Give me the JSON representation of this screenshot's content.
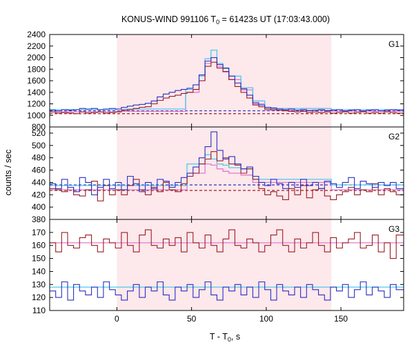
{
  "chart_data": {
    "type": "line",
    "title": "KONUS-WIND 991106 T",
    "title_sub": "0",
    "title_rest": " = 61423s UT (17:03:43.000)",
    "xlabel": "T - T",
    "xlabel_sub": "0",
    "xlabel_rest": ", s",
    "ylabel": "counts / sec",
    "xlim": [
      -45,
      192
    ],
    "x_ticks": [
      "0",
      "50",
      "100",
      "150"
    ],
    "x_tick_values": [
      0,
      50,
      100,
      150
    ],
    "shaded_interval": [
      0,
      143.6
    ],
    "colors": {
      "shade": "#fde8ec",
      "red_series": "#9b1b20",
      "blue_series": "#2a2ebf",
      "pink_fit": "#e17ad0",
      "cyan_fit": "#4fc8e8",
      "axis": "#000000"
    },
    "panels": [
      {
        "label": "G1",
        "ylim": [
          800,
          2400
        ],
        "y_ticks": [
          "800",
          "1000",
          "1200",
          "1400",
          "1600",
          "1800",
          "2000",
          "2200",
          "2400"
        ],
        "y_tick_values": [
          800,
          1000,
          1200,
          1400,
          1600,
          1800,
          2000,
          2200,
          2400
        ],
        "background_levels": {
          "red": 1030,
          "blue": 1080
        },
        "series": [
          {
            "color_key": "red",
            "x": [
              -45,
              -41,
              -37,
              -33,
              -29,
              -25,
              -21,
              -17,
              -13,
              -9,
              -5,
              -1,
              3,
              7,
              11,
              15,
              19,
              23,
              27,
              31,
              35,
              39,
              43,
              47,
              51,
              55,
              59,
              63,
              67,
              71,
              75,
              79,
              83,
              87,
              91,
              95,
              99,
              103,
              107,
              111,
              115,
              119,
              123,
              127,
              131,
              135,
              139,
              143,
              147,
              151,
              155,
              159,
              163,
              167,
              171,
              175,
              179,
              183,
              187
            ],
            "values": [
              1060,
              1040,
              1050,
              1040,
              1030,
              1060,
              1040,
              1050,
              1060,
              1040,
              1050,
              1060,
              1090,
              1100,
              1120,
              1140,
              1150,
              1200,
              1260,
              1300,
              1330,
              1350,
              1380,
              1400,
              1450,
              1600,
              1850,
              1920,
              1820,
              1760,
              1620,
              1500,
              1400,
              1300,
              1180,
              1150,
              1110,
              1100,
              1090,
              1080,
              1070,
              1060,
              1070,
              1050,
              1060,
              1050,
              1060,
              1040,
              1050,
              1060,
              1040,
              1050,
              1060,
              1040,
              1050,
              1040,
              1060,
              1050,
              1040
            ]
          },
          {
            "color_key": "blue",
            "x": [
              -45,
              -41,
              -37,
              -33,
              -29,
              -25,
              -21,
              -17,
              -13,
              -9,
              -5,
              -1,
              3,
              7,
              11,
              15,
              19,
              23,
              27,
              31,
              35,
              39,
              43,
              47,
              51,
              55,
              59,
              63,
              67,
              71,
              75,
              79,
              83,
              87,
              91,
              95,
              99,
              103,
              107,
              111,
              115,
              119,
              123,
              127,
              131,
              135,
              139,
              143,
              147,
              151,
              155,
              159,
              163,
              167,
              171,
              175,
              179,
              183,
              187
            ],
            "values": [
              1090,
              1080,
              1100,
              1090,
              1100,
              1120,
              1110,
              1120,
              1100,
              1110,
              1120,
              1110,
              1140,
              1160,
              1180,
              1190,
              1210,
              1250,
              1320,
              1370,
              1400,
              1430,
              1450,
              1470,
              1530,
              1700,
              1940,
              2000,
              1880,
              1820,
              1680,
              1560,
              1460,
              1350,
              1220,
              1180,
              1140,
              1130,
              1110,
              1100,
              1110,
              1090,
              1100,
              1080,
              1090,
              1100,
              1080,
              1090,
              1100,
              1080,
              1090,
              1100,
              1080,
              1090,
              1100,
              1080,
              1090,
              1100,
              1090
            ]
          },
          {
            "color_key": "pink",
            "x": [
              -45,
              0,
              46,
              55,
              59,
              63,
              67,
              71,
              75,
              83,
              91,
              99,
              143.6,
              192
            ],
            "values": [
              1060,
              1070,
              1400,
              1600,
              1900,
              2000,
              1850,
              1750,
              1620,
              1440,
              1200,
              1090,
              1070,
              1060
            ]
          },
          {
            "color_key": "cyan",
            "x": [
              -45,
              0,
              46,
              55,
              59,
              63,
              67,
              71,
              75,
              83,
              91,
              99,
              143.6,
              192
            ],
            "values": [
              1100,
              1110,
              1450,
              1680,
              1980,
              2130,
              1900,
              1810,
              1680,
              1480,
              1250,
              1120,
              1100,
              1100
            ]
          }
        ]
      },
      {
        "label": "G2",
        "ylim": [
          380,
          530
        ],
        "y_ticks": [
          "380",
          "400",
          "420",
          "440",
          "460",
          "480",
          "500",
          "520"
        ],
        "y_tick_values": [
          380,
          400,
          420,
          440,
          460,
          480,
          500,
          520
        ],
        "background_levels": {
          "red": 427,
          "blue": 436
        },
        "series": [
          {
            "color_key": "red",
            "x": [
              -45,
              -41,
              -37,
              -33,
              -29,
              -25,
              -21,
              -17,
              -13,
              -9,
              -5,
              -1,
              3,
              7,
              11,
              15,
              19,
              23,
              27,
              31,
              35,
              39,
              43,
              47,
              51,
              55,
              59,
              63,
              67,
              71,
              75,
              79,
              83,
              87,
              91,
              95,
              99,
              103,
              107,
              111,
              115,
              119,
              123,
              127,
              131,
              135,
              139,
              143,
              147,
              151,
              155,
              159,
              163,
              167,
              171,
              175,
              179,
              183,
              187
            ],
            "values": [
              430,
              428,
              425,
              432,
              420,
              418,
              428,
              442,
              410,
              435,
              420,
              428,
              420,
              435,
              445,
              428,
              420,
              432,
              425,
              440,
              428,
              425,
              438,
              450,
              455,
              470,
              478,
              490,
              475,
              480,
              470,
              468,
              455,
              462,
              445,
              430,
              420,
              425,
              418,
              412,
              430,
              420,
              435,
              415,
              428,
              430,
              418,
              412,
              420,
              425,
              432,
              420,
              428,
              425,
              438,
              420,
              430,
              425,
              420
            ]
          },
          {
            "color_key": "blue",
            "x": [
              -45,
              -41,
              -37,
              -33,
              -29,
              -25,
              -21,
              -17,
              -13,
              -9,
              -5,
              -1,
              3,
              7,
              11,
              15,
              19,
              23,
              27,
              31,
              35,
              39,
              43,
              47,
              51,
              55,
              59,
              63,
              67,
              71,
              75,
              79,
              83,
              87,
              91,
              95,
              99,
              103,
              107,
              111,
              115,
              119,
              123,
              127,
              131,
              135,
              139,
              143,
              147,
              151,
              155,
              159,
              163,
              167,
              171,
              175,
              179,
              183,
              187
            ],
            "values": [
              438,
              430,
              445,
              432,
              425,
              448,
              440,
              420,
              432,
              445,
              430,
              440,
              428,
              450,
              438,
              425,
              440,
              430,
              445,
              442,
              432,
              440,
              448,
              455,
              465,
              480,
              498,
              522,
              492,
              478,
              482,
              470,
              462,
              465,
              450,
              440,
              435,
              445,
              438,
              430,
              440,
              432,
              445,
              435,
              440,
              430,
              442,
              438,
              432,
              440,
              448,
              430,
              442,
              438,
              432,
              440,
              435,
              440,
              430
            ]
          },
          {
            "color_key": "pink",
            "x": [
              -45,
              0,
              47,
              59,
              63,
              67,
              71,
              75,
              83,
              91,
              143.6,
              192
            ],
            "values": [
              428,
              428,
              455,
              470,
              468,
              462,
              458,
              455,
              452,
              440,
              428,
              428
            ]
          },
          {
            "color_key": "cyan",
            "x": [
              -45,
              0,
              47,
              59,
              63,
              67,
              71,
              75,
              83,
              91,
              143.6,
              192
            ],
            "values": [
              435,
              435,
              470,
              485,
              478,
              470,
              468,
              464,
              462,
              445,
              436,
              436
            ]
          }
        ]
      },
      {
        "label": "G3",
        "ylim": [
          110,
          180
        ],
        "y_ticks": [
          "110",
          "120",
          "130",
          "140",
          "150",
          "160",
          "170"
        ],
        "y_tick_values": [
          110,
          120,
          130,
          140,
          150,
          160,
          170
        ],
        "background_levels": {},
        "series": [
          {
            "color_key": "red",
            "x": [
              -45,
              -41,
              -37,
              -33,
              -29,
              -25,
              -21,
              -17,
              -13,
              -9,
              -5,
              -1,
              3,
              7,
              11,
              15,
              19,
              23,
              27,
              31,
              35,
              39,
              43,
              47,
              51,
              55,
              59,
              63,
              67,
              71,
              75,
              79,
              83,
              87,
              91,
              95,
              99,
              103,
              107,
              111,
              115,
              119,
              123,
              127,
              131,
              135,
              139,
              143,
              147,
              151,
              155,
              159,
              163,
              167,
              171,
              175,
              179,
              183,
              187
            ],
            "values": [
              162,
              155,
              170,
              160,
              158,
              166,
              168,
              160,
              155,
              165,
              162,
              158,
              170,
              160,
              155,
              168,
              172,
              160,
              158,
              165,
              160,
              166,
              155,
              170,
              162,
              158,
              168,
              160,
              155,
              165,
              172,
              160,
              158,
              165,
              162,
              155,
              160,
              168,
              172,
              160,
              155,
              165,
              158,
              162,
              170,
              160,
              155,
              166,
              158,
              162,
              165,
              170,
              158,
              160,
              168,
              155,
              162,
              150,
              168
            ]
          },
          {
            "color_key": "blue",
            "x": [
              -45,
              -41,
              -37,
              -33,
              -29,
              -25,
              -21,
              -17,
              -13,
              -9,
              -5,
              -1,
              3,
              7,
              11,
              15,
              19,
              23,
              27,
              31,
              35,
              39,
              43,
              47,
              51,
              55,
              59,
              63,
              67,
              71,
              75,
              79,
              83,
              87,
              91,
              95,
              99,
              103,
              107,
              111,
              115,
              119,
              123,
              127,
              131,
              135,
              139,
              143,
              147,
              151,
              155,
              159,
              163,
              167,
              171,
              175,
              179,
              183,
              187
            ],
            "values": [
              125,
              120,
              132,
              118,
              130,
              125,
              122,
              128,
              120,
              132,
              126,
              122,
              118,
              125,
              130,
              120,
              128,
              125,
              132,
              122,
              118,
              128,
              125,
              130,
              120,
              126,
              132,
              122,
              118,
              128,
              125,
              130,
              122,
              128,
              120,
              132,
              126,
              118,
              130,
              125,
              122,
              128,
              120,
              130,
              126,
              122,
              118,
              128,
              125,
              130,
              120,
              126,
              132,
              122,
              128,
              125,
              120,
              130,
              126
            ]
          },
          {
            "color_key": "pink",
            "x": [
              -45,
              192
            ],
            "values": [
              162,
              162
            ]
          },
          {
            "color_key": "cyan",
            "x": [
              -45,
              192
            ],
            "values": [
              128,
              128
            ]
          }
        ]
      }
    ]
  }
}
